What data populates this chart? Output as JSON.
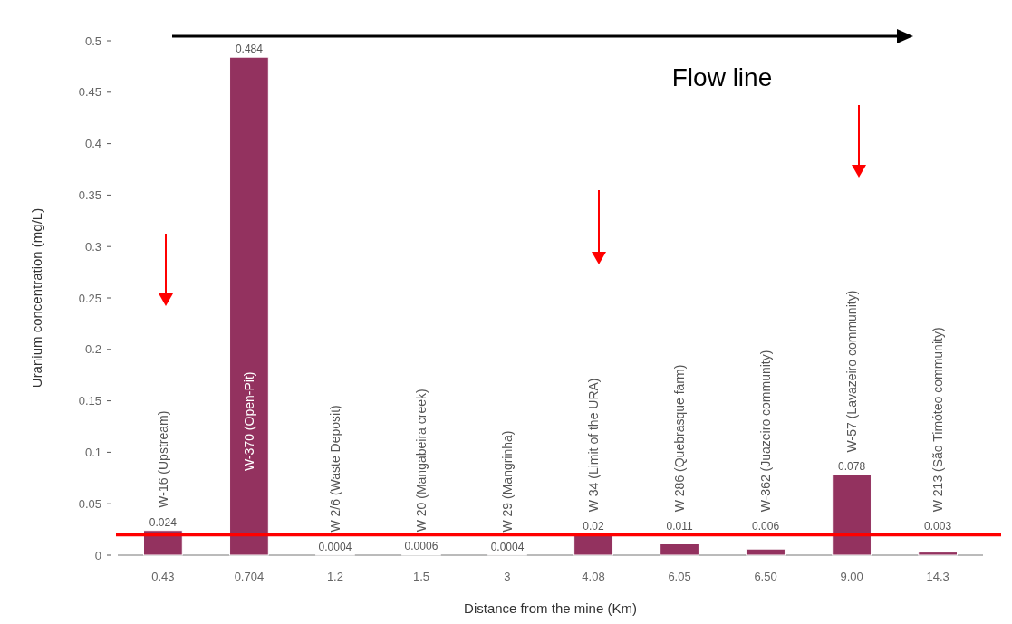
{
  "chart_data": {
    "type": "bar",
    "xlabel": "Distance from the mine (Km)",
    "ylabel": "Uranium concentration (mg/L)",
    "categories": [
      "0.43",
      "0.704",
      "1.2",
      "1.5",
      "3",
      "4.08",
      "6.05",
      "6.50",
      "9.00",
      "14.3"
    ],
    "values": [
      0.024,
      0.484,
      0.0004,
      0.0006,
      0.0004,
      0.02,
      0.011,
      0.006,
      0.078,
      0.003
    ],
    "value_labels": [
      "0.024",
      "0.484",
      "0.0004",
      "0.0006",
      "0.0004",
      "0.02",
      "0.011",
      "0.006",
      "0.078",
      "0.003"
    ],
    "color": "#93325f",
    "ylim": [
      0,
      0.5
    ],
    "yticks": [
      0,
      0.05,
      0.1,
      0.15,
      0.2,
      0.25,
      0.3,
      0.35,
      0.4,
      0.45,
      0.5
    ],
    "ref_lines": [
      {
        "axis": "y",
        "value": 0.02,
        "color": "#ff0000"
      }
    ],
    "annotations": [
      "Flow line",
      "W-16 (Upstream)",
      "W-370 (Open-Pit)",
      "W 2/6 (Waste Deposit)",
      "W 20 (Mangabeira creek)",
      "W 29 (Mangrinha)",
      "W 34 (Limit of the URA)",
      "W 286 (Quebrasque farm)",
      "W-362 (Juazeiro community)",
      "W-57 (Lavazeiro community)",
      "W 213 (São Timóteo community)"
    ],
    "grid": false
  }
}
